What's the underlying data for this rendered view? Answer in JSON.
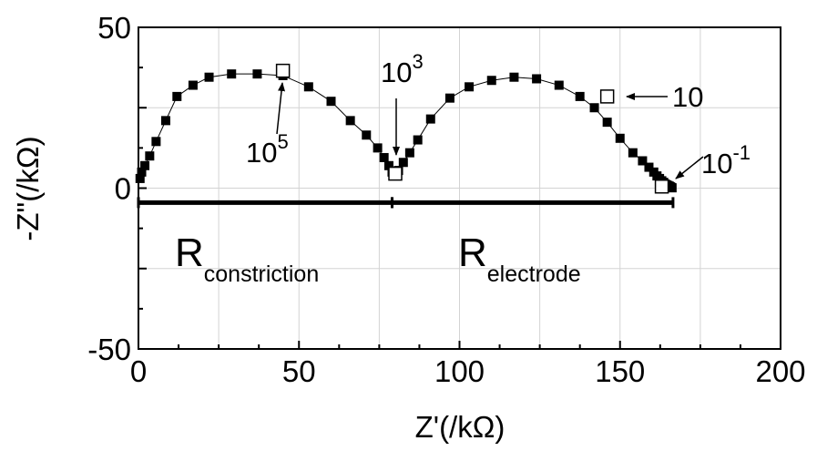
{
  "chart_data": {
    "type": "scatter",
    "title": "",
    "xlabel": "Z'(/kΩ)",
    "ylabel": "-Z\"(/kΩ)",
    "xlim": [
      0,
      200
    ],
    "ylim": [
      -50,
      50
    ],
    "x_ticks": [
      "0",
      "50",
      "100",
      "150",
      "200"
    ],
    "y_ticks": [
      "-50",
      "0",
      "50"
    ],
    "grid": true,
    "series": [
      {
        "marker": "filled-square",
        "connected": true,
        "x": [
          0.5,
          1.0,
          2.0,
          3.5,
          5.5,
          8.5,
          12.0,
          17.0,
          22.0,
          29.0,
          37.0,
          45.0,
          53.0,
          60.0,
          66.0,
          71.0,
          74.5,
          76.5,
          78.0,
          79.0,
          80.0,
          81.0,
          82.5,
          84.5,
          87.0,
          91.0,
          97.0,
          103.0,
          110.0,
          117.0,
          124.0,
          131.0,
          137.5,
          142.0,
          146.0,
          150.0,
          154.0,
          157.0,
          159.0,
          160.5,
          161.5,
          162.3,
          163.0,
          163.6,
          164.1,
          164.6,
          165.0,
          165.4,
          165.7,
          166.0,
          166.2
        ],
        "y": [
          3.0,
          5.0,
          7.0,
          10.0,
          14.5,
          21.0,
          28.5,
          32.0,
          34.5,
          35.5,
          35.5,
          35.0,
          31.5,
          27.0,
          21.0,
          16.5,
          12.5,
          9.5,
          7.0,
          5.0,
          4.5,
          5.5,
          8.0,
          11.0,
          15.0,
          21.5,
          28.0,
          31.5,
          33.5,
          34.5,
          34.0,
          32.0,
          28.5,
          25.0,
          20.5,
          15.5,
          11.0,
          8.5,
          6.5,
          5.0,
          3.8,
          3.0,
          2.3,
          1.8,
          1.3,
          1.0,
          0.8,
          0.6,
          0.4,
          0.2,
          0.1
        ]
      },
      {
        "marker": "open-square",
        "connected": false,
        "x": [
          45.0,
          80.0,
          146.0,
          163.0
        ],
        "y": [
          36.5,
          4.5,
          28.5,
          0.5
        ]
      }
    ],
    "resistance_segments": [
      {
        "x_start": 0,
        "x_end": 79,
        "y": -4.5
      },
      {
        "x_start": 79,
        "x_end": 166.5,
        "y": -4.5
      }
    ],
    "annotations": [
      {
        "base": "10",
        "exp": "5",
        "target_x": 45,
        "target_y": 36.5
      },
      {
        "base": "10",
        "exp": "3",
        "target_x": 80,
        "target_y": 4.5
      },
      {
        "base": "10",
        "exp": "",
        "target_x": 146,
        "target_y": 28.5
      },
      {
        "base": "10",
        "exp": "-1",
        "target_x": 166.2,
        "target_y": 0.5
      }
    ],
    "region_labels": [
      {
        "main": "R",
        "sub": "constriction"
      },
      {
        "main": "R",
        "sub": "electrode"
      }
    ]
  }
}
